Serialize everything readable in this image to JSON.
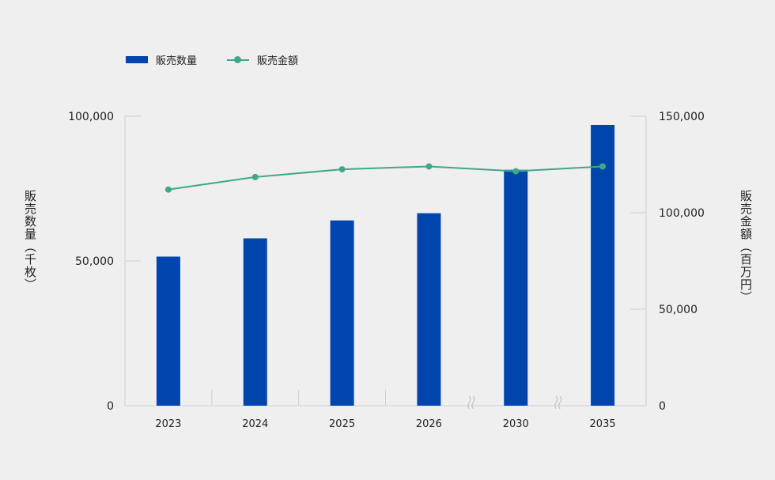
{
  "legend": {
    "bar_label": "販売数量",
    "line_label": "販売金額"
  },
  "axis_titles": {
    "left": "販売数量（千枚）",
    "right": "販売金額（百万円）"
  },
  "colors": {
    "bar": "#0045ad",
    "line": "#40a78a",
    "grid": "#cfcfcf",
    "background": "#efefef"
  },
  "chart_data": {
    "type": "bar",
    "categories": [
      "2023",
      "2024",
      "2025",
      "2026",
      "2030",
      "2035"
    ],
    "axis_breaks_after": [
      "2026",
      "2030"
    ],
    "series": [
      {
        "name": "販売数量",
        "type": "bar",
        "axis": "left",
        "values": [
          51500,
          57800,
          64000,
          66500,
          81500,
          97000
        ]
      },
      {
        "name": "販売金額",
        "type": "line",
        "axis": "right",
        "values": [
          112000,
          118500,
          122500,
          124000,
          121500,
          124000
        ]
      }
    ],
    "ylabel": "販売数量（千枚）",
    "ylim": [
      0,
      100000
    ],
    "yticks": [
      "0",
      "50,000",
      "100,000"
    ],
    "y2label": "販売金額（百万円）",
    "y2lim": [
      0,
      150000
    ],
    "y2ticks": [
      "0",
      "50,000",
      "100,000",
      "150,000"
    ],
    "grid": false,
    "legend_position": "top-left"
  }
}
